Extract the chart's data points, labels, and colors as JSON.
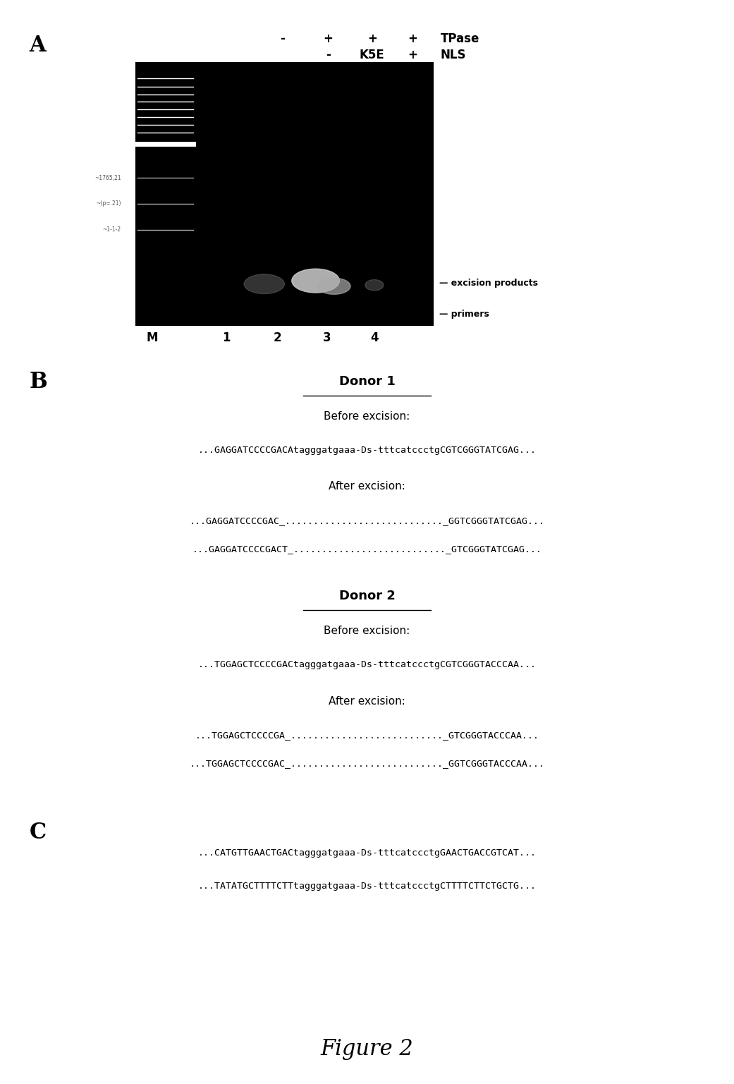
{
  "fig_width": 10.41,
  "fig_height": 15.37,
  "background_color": "#ffffff",
  "panel_A": {
    "label": "A",
    "col_signs_TPase": [
      "-",
      "+",
      "+",
      "+"
    ],
    "col_signs_NLS": [
      "",
      "-",
      "K5E",
      "+"
    ],
    "lane_labels": [
      "M",
      "1",
      "2",
      "3",
      "4"
    ],
    "excision_label": "— excision products",
    "primers_label": "— primers",
    "header_TPase": "TPase",
    "header_NLS": "NLS"
  },
  "panel_B": {
    "label": "B",
    "donor1_title": "Donor 1",
    "donor2_title": "Donor 2",
    "before_excision": "Before excision:",
    "after_excision": "After excision:",
    "donor1_before": "...GAGGATCCCCGACAtagggatgaaa-Ds-tttcatccctgCGTCGGGTATCGAG...",
    "donor1_after1": "...GAGGATCCCCGAC_............................_GGTCGGGTATCGAG...",
    "donor1_after2": "...GAGGATCCCCGACT_..........................._GTCGGGTATCGAG...",
    "donor2_before": "...TGGAGCTCCCCGACtagggatgaaa-Ds-tttcatccctgCGTCGGGTACCCAA...",
    "donor2_after1": "...TGGAGCTCCCCGA_..........................._GTCGGGTACCCAA...",
    "donor2_after2": "...TGGAGCTCCCCGAC_..........................._GGTCGGGTACCCAA..."
  },
  "panel_C": {
    "label": "C",
    "line1": "...CATGTTGAACTGACtagggatgaaa-Ds-tttcatccctgGAACTGACCGTCAT...",
    "line2": "...TATATGCTTTTCTTtagggatgaaa-Ds-tttcatccctgCTTTTCTTCTGCTG..."
  },
  "figure_label": "Figure 2"
}
